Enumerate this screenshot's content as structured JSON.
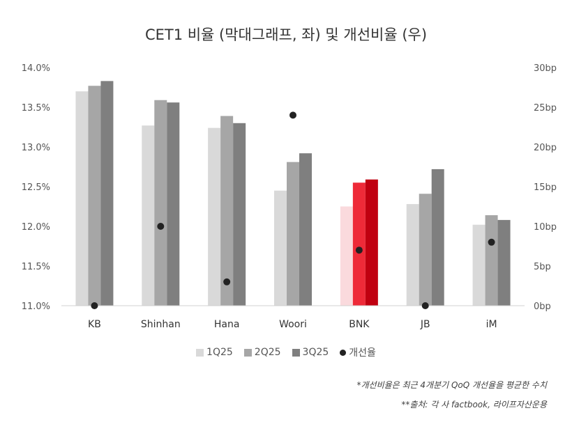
{
  "title": "CET1 비율 (막대그래프, 좌) 및 개선비율 (우)",
  "legend": [
    "1Q25",
    "2Q25",
    "3Q25",
    "개선율"
  ],
  "notes": [
    "*개선비율은 최근 4개분기 QoQ 개선율을 평균한 수치",
    "**출처: 각 사 factbook, 라이프자산운용"
  ],
  "colors": {
    "q1": "#d9d9d9",
    "q2": "#a6a6a6",
    "q3": "#7f7f7f",
    "bnk_q1": "#fadadd",
    "bnk_q2": "#ee2a38",
    "bnk_q3": "#c00010",
    "dot": "#222222"
  },
  "chart_data": {
    "type": "bar",
    "categories": [
      "KB",
      "Shinhan",
      "Hana",
      "Woori",
      "BNK",
      "JB",
      "iM"
    ],
    "series": [
      {
        "name": "1Q25",
        "axis": "left",
        "values": [
          13.7,
          13.27,
          13.24,
          12.45,
          12.25,
          12.28,
          12.02
        ]
      },
      {
        "name": "2Q25",
        "axis": "left",
        "values": [
          13.77,
          13.59,
          13.39,
          12.81,
          12.55,
          12.41,
          12.14
        ]
      },
      {
        "name": "3Q25",
        "axis": "left",
        "values": [
          13.83,
          13.56,
          13.3,
          12.92,
          12.59,
          12.72,
          12.08
        ]
      },
      {
        "name": "개선율",
        "axis": "right",
        "type": "scatter",
        "values": [
          0,
          10,
          3,
          24,
          7,
          0,
          8
        ]
      }
    ],
    "yleft": {
      "min": 11.0,
      "max": 14.0,
      "step": 0.5,
      "ticks": [
        "11.0%",
        "11.5%",
        "12.0%",
        "12.5%",
        "13.0%",
        "13.5%",
        "14.0%"
      ]
    },
    "yright": {
      "min": 0,
      "max": 30,
      "step": 5,
      "ticks": [
        "0bp",
        "5bp",
        "10bp",
        "15bp",
        "20bp",
        "25bp",
        "30bp"
      ]
    },
    "highlight": "BNK",
    "grid": false,
    "legend_position": "bottom"
  }
}
